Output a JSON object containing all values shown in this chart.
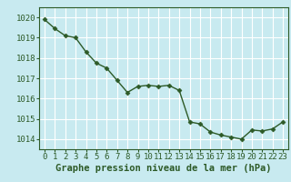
{
  "x": [
    0,
    1,
    2,
    3,
    4,
    5,
    6,
    7,
    8,
    9,
    10,
    11,
    12,
    13,
    14,
    15,
    16,
    17,
    18,
    19,
    20,
    21,
    22,
    23
  ],
  "y": [
    1019.9,
    1019.45,
    1019.1,
    1019.0,
    1018.3,
    1017.75,
    1017.5,
    1016.9,
    1016.3,
    1016.6,
    1016.65,
    1016.6,
    1016.65,
    1016.4,
    1014.85,
    1014.75,
    1014.35,
    1014.2,
    1014.1,
    1014.0,
    1014.45,
    1014.4,
    1014.5,
    1014.85
  ],
  "ylim": [
    1013.5,
    1020.5
  ],
  "yticks": [
    1014,
    1015,
    1016,
    1017,
    1018,
    1019,
    1020
  ],
  "xlim": [
    -0.5,
    23.5
  ],
  "xticks": [
    0,
    1,
    2,
    3,
    4,
    5,
    6,
    7,
    8,
    9,
    10,
    11,
    12,
    13,
    14,
    15,
    16,
    17,
    18,
    19,
    20,
    21,
    22,
    23
  ],
  "xlabel": "Graphe pression niveau de la mer (hPa)",
  "line_color": "#2d5a27",
  "marker": "D",
  "marker_size": 2.5,
  "bg_color": "#c8eaf0",
  "grid_color": "#b0d0d8",
  "tick_label_color": "#2d5a27",
  "xlabel_color": "#2d5a27",
  "xlabel_fontsize": 7.5,
  "tick_fontsize": 6.5,
  "linewidth": 1.0
}
